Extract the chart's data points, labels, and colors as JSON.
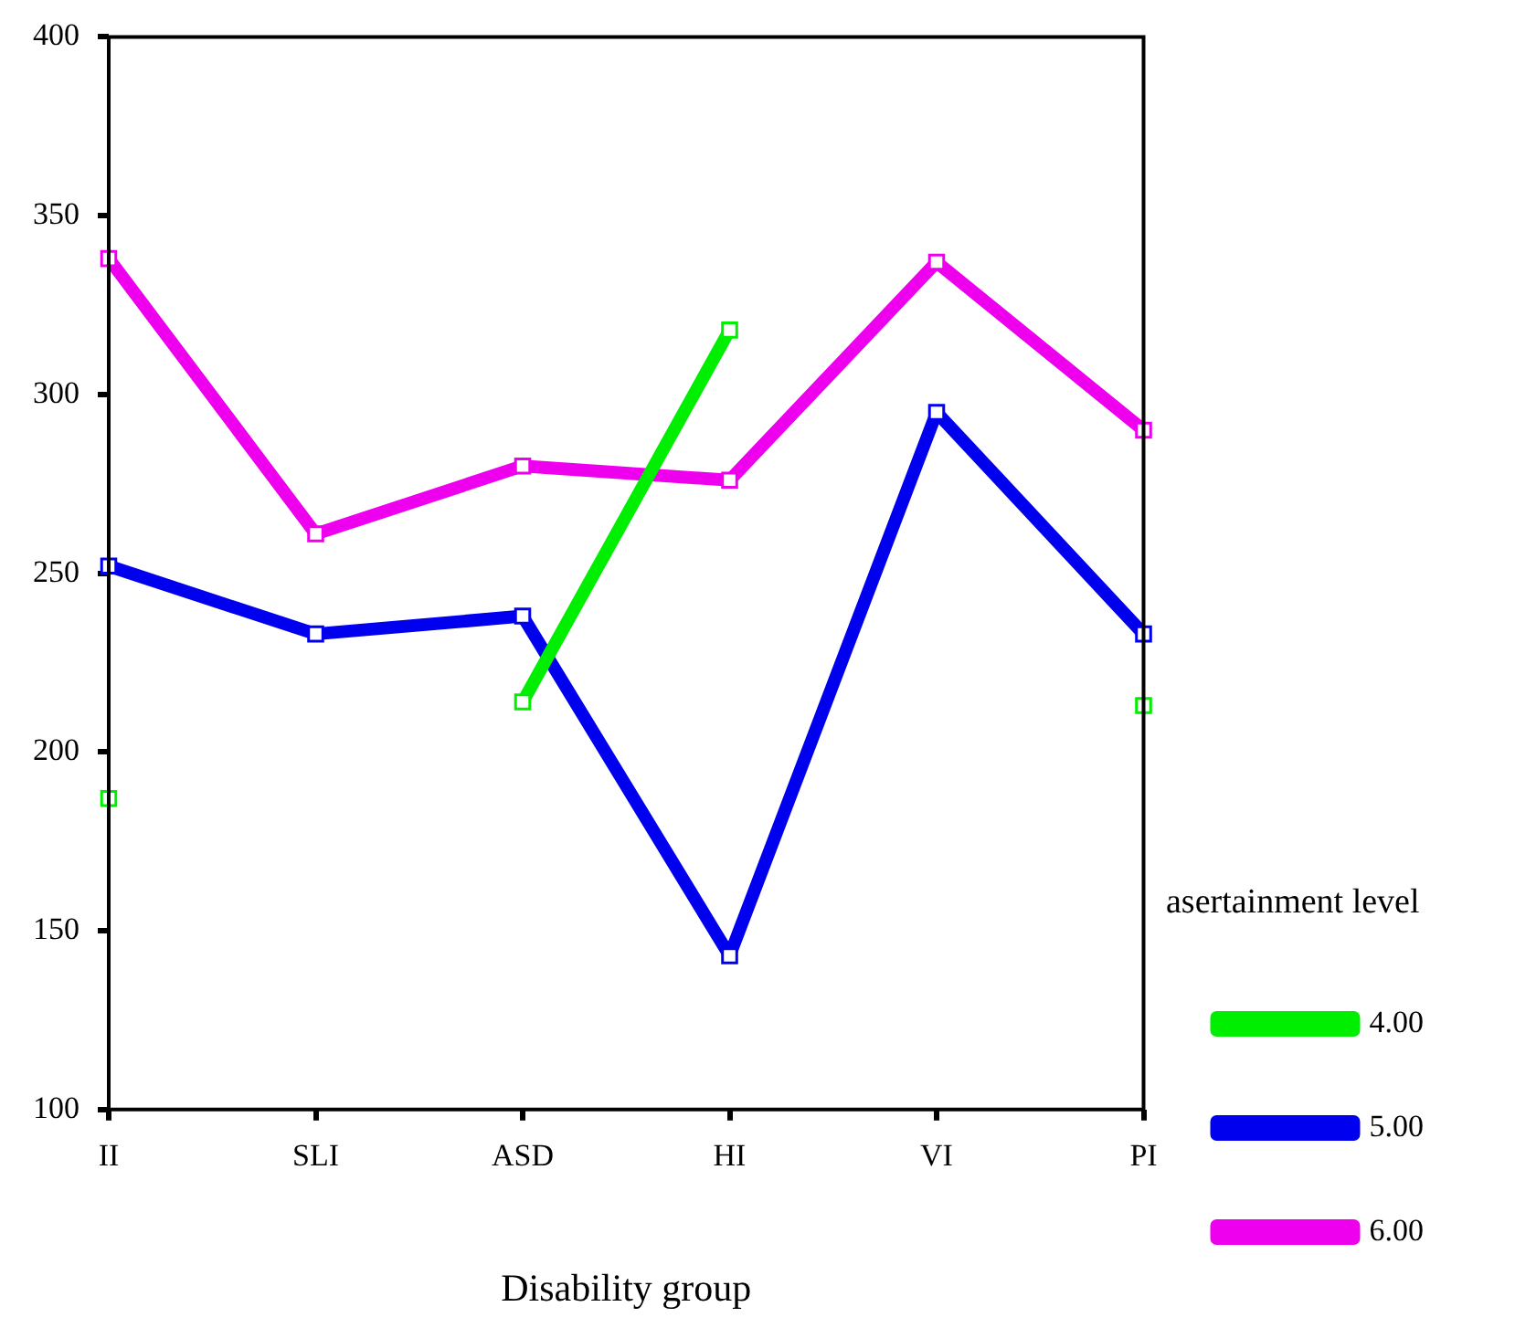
{
  "chart_data": {
    "type": "line",
    "xlabel": "Disability group",
    "legend_title": "asertainment level",
    "categories": [
      "II",
      "SLI",
      "ASD",
      "HI",
      "VI",
      "PI"
    ],
    "series": [
      {
        "name": "4.00",
        "color": "#00ee00",
        "values": [
          187,
          null,
          214,
          318,
          null,
          213
        ]
      },
      {
        "name": "5.00",
        "color": "#0000ee",
        "values": [
          252,
          233,
          238,
          143,
          295,
          233
        ]
      },
      {
        "name": "6.00",
        "color": "#ee00ee",
        "values": [
          338,
          261,
          280,
          276,
          337,
          290
        ]
      }
    ],
    "ylim": [
      100,
      400
    ],
    "yticks": [
      100,
      150,
      200,
      250,
      300,
      350,
      400
    ],
    "grid": false,
    "legend": "right",
    "marker": "square",
    "line_style": "solid"
  }
}
